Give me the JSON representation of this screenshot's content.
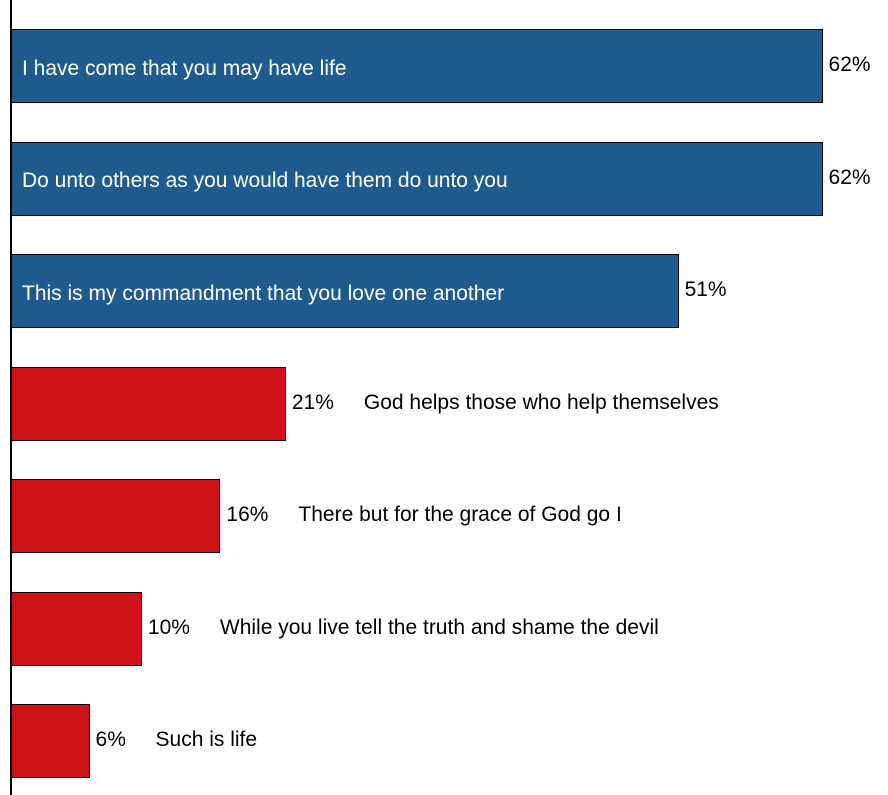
{
  "chart_data": {
    "type": "bar",
    "orientation": "horizontal",
    "categories": [
      "I have come that you may have life",
      "Do unto others as you would have them do unto you",
      "This is my commandment that you love one another",
      "God helps those who help themselves",
      "There but for the grace of God go I",
      "While you live tell the truth and shame the devil",
      "Such is life"
    ],
    "values": [
      62,
      62,
      51,
      21,
      16,
      10,
      6
    ],
    "value_labels": [
      "62%",
      "62%",
      "51%",
      "21%",
      "16%",
      "10%",
      "6%"
    ],
    "colors": [
      "#1f5b8e",
      "#1f5b8e",
      "#1f5b8e",
      "#cc1416",
      "#cc1416",
      "#cc1416",
      "#cc1416"
    ],
    "xlim": [
      0,
      67
    ]
  }
}
